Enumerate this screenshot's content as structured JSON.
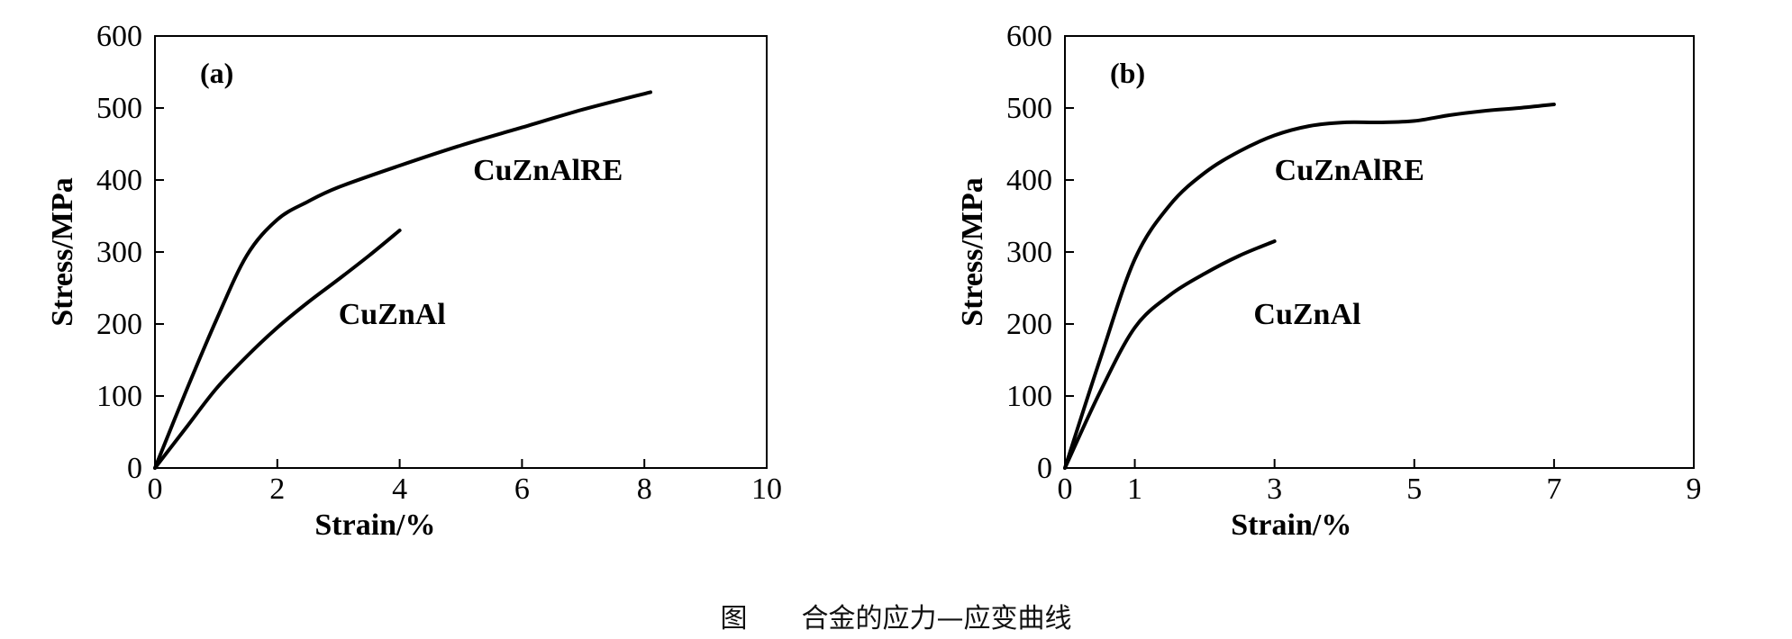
{
  "caption": {
    "fig_word": "图",
    "text": "合金的应力—应变曲线"
  },
  "chart_data": [
    {
      "type": "line",
      "panel_label": "(a)",
      "xlabel": "Strain/%",
      "ylabel": "Stress/MPa",
      "xlim": [
        0,
        10
      ],
      "ylim": [
        0,
        600
      ],
      "xticks": [
        0,
        2,
        4,
        6,
        8,
        10
      ],
      "yticks": [
        0,
        100,
        200,
        300,
        400,
        500,
        600
      ],
      "grid": false,
      "series": [
        {
          "name": "CuZnAlRE",
          "label_at": [
            5.2,
            400
          ],
          "x": [
            0,
            0.5,
            1,
            1.5,
            2,
            2.5,
            3,
            4,
            5,
            6,
            7,
            8.1
          ],
          "y": [
            0,
            105,
            205,
            295,
            345,
            370,
            390,
            420,
            448,
            473,
            498,
            522
          ]
        },
        {
          "name": "CuZnAl",
          "label_at": [
            3.0,
            200
          ],
          "x": [
            0,
            0.5,
            1,
            1.5,
            2,
            2.5,
            3,
            3.5,
            4
          ],
          "y": [
            0,
            55,
            110,
            155,
            195,
            230,
            262,
            295,
            330
          ]
        }
      ]
    },
    {
      "type": "line",
      "panel_label": "(b)",
      "xlabel": "Strain/%",
      "ylabel": "Stress/MPa",
      "xlim": [
        0,
        9
      ],
      "ylim": [
        0,
        600
      ],
      "xticks": [
        0,
        1,
        3,
        5,
        7,
        9
      ],
      "yticks": [
        0,
        100,
        200,
        300,
        400,
        500,
        600
      ],
      "grid": false,
      "series": [
        {
          "name": "CuZnAlRE",
          "label_at": [
            3.0,
            400
          ],
          "x": [
            0,
            0.5,
            1,
            1.5,
            2,
            2.5,
            3,
            3.5,
            4,
            4.5,
            5,
            5.5,
            6,
            6.5,
            7
          ],
          "y": [
            0,
            150,
            290,
            365,
            410,
            440,
            462,
            475,
            480,
            480,
            482,
            490,
            496,
            500,
            505
          ]
        },
        {
          "name": "CuZnAl",
          "label_at": [
            2.7,
            200
          ],
          "x": [
            0,
            0.5,
            1,
            1.5,
            2,
            2.5,
            3
          ],
          "y": [
            0,
            105,
            195,
            240,
            270,
            295,
            315
          ]
        }
      ]
    }
  ]
}
